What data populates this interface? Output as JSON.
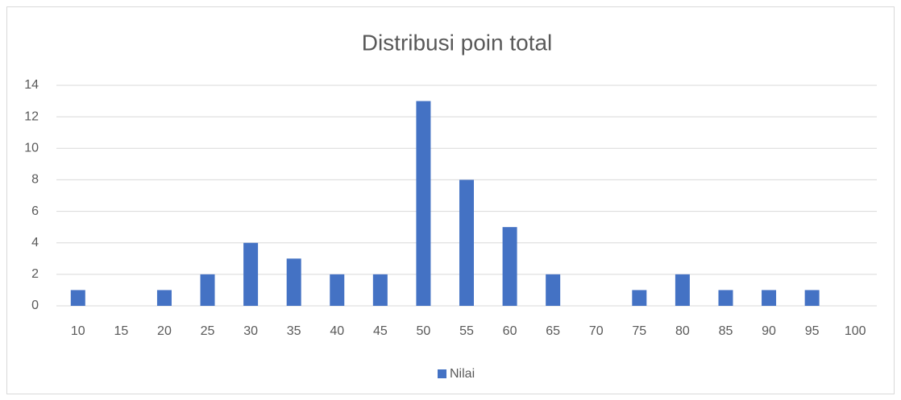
{
  "chart_data": {
    "type": "bar",
    "title": "Distribusi poin total",
    "categories": [
      "10",
      "15",
      "20",
      "25",
      "30",
      "35",
      "40",
      "45",
      "50",
      "55",
      "60",
      "65",
      "70",
      "75",
      "80",
      "85",
      "90",
      "95",
      "100"
    ],
    "series": [
      {
        "name": "Nilai",
        "color": "#4472c4",
        "values": [
          1,
          0,
          1,
          2,
          4,
          3,
          2,
          2,
          13,
          8,
          5,
          2,
          0,
          1,
          2,
          1,
          1,
          1,
          0
        ]
      }
    ],
    "ylim": [
      0,
      14
    ],
    "yticks": [
      0,
      2,
      4,
      6,
      8,
      10,
      12,
      14
    ],
    "grid": true,
    "legend": "bottom"
  }
}
